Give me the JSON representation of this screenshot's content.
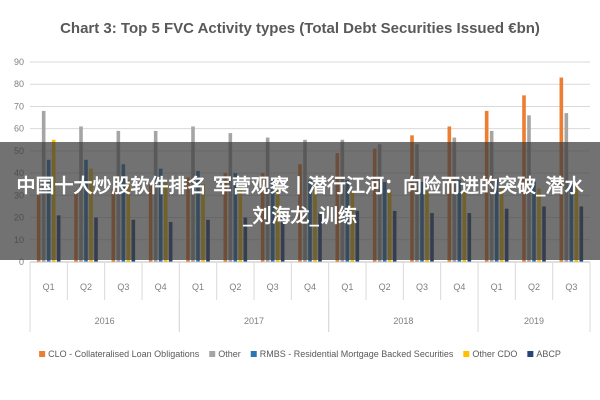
{
  "chart_data": {
    "type": "bar",
    "title": "Chart 3: Top 5 FVC Activity types (Total Debt Securities Issued €bn)",
    "xlabel": "",
    "ylabel": "",
    "ylim": [
      0,
      90
    ],
    "yticks": [
      0,
      10,
      20,
      30,
      40,
      50,
      60,
      70,
      80,
      90
    ],
    "grid": true,
    "legend_position": "bottom",
    "categories": [
      "Q1",
      "Q2",
      "Q3",
      "Q4",
      "Q1",
      "Q2",
      "Q3",
      "Q4",
      "Q1",
      "Q2",
      "Q3",
      "Q4",
      "Q1",
      "Q2",
      "Q3"
    ],
    "groups": [
      {
        "label": "2016",
        "count": 4
      },
      {
        "label": "2017",
        "count": 4
      },
      {
        "label": "2018",
        "count": 4
      },
      {
        "label": "2019",
        "count": 3
      }
    ],
    "series": [
      {
        "name": "CLO - Collateralised Loan Obligations",
        "color": "#ed7d31",
        "values": [
          30,
          32,
          33,
          35,
          38,
          40,
          40,
          44,
          49,
          51,
          57,
          61,
          68,
          75,
          83
        ]
      },
      {
        "name": "Other",
        "color": "#a5a5a5",
        "values": [
          68,
          61,
          59,
          59,
          61,
          58,
          56,
          55,
          55,
          53,
          53,
          56,
          59,
          66,
          67
        ]
      },
      {
        "name": "RMBS - Residential Mortgage Backed Securities",
        "color": "#2e75b6",
        "values": [
          46,
          46,
          44,
          42,
          41,
          40,
          38,
          37,
          37,
          36,
          36,
          37,
          37,
          36,
          35
        ]
      },
      {
        "name": "Other CDO",
        "color": "#ffc000",
        "values": [
          55,
          42,
          37,
          36,
          35,
          34,
          33,
          33,
          32,
          32,
          32,
          33,
          33,
          33,
          34
        ]
      },
      {
        "name": "ABCP",
        "color": "#264478",
        "values": [
          21,
          20,
          19,
          18,
          19,
          20,
          21,
          22,
          23,
          23,
          22,
          22,
          24,
          25,
          25
        ]
      }
    ]
  },
  "overlay": {
    "text": "中国十大炒股软件排名 军营观察丨潜行江河：向险而进的突破_潜水_刘海龙_训练"
  }
}
